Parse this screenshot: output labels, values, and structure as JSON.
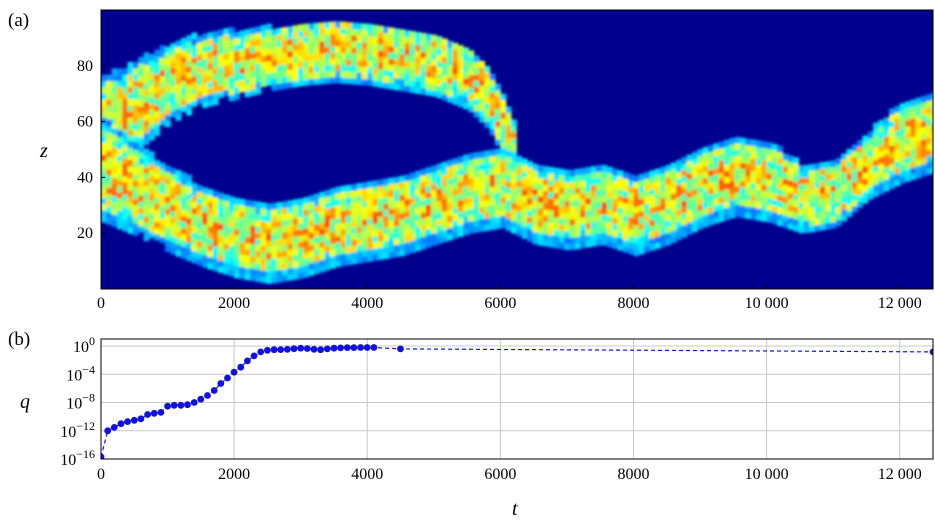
{
  "panel_a": {
    "label": "(a)",
    "ylabel": "z",
    "xlim": [
      0,
      12500
    ],
    "ylim": [
      0,
      100
    ],
    "x_ticks": [
      0,
      2000,
      4000,
      6000,
      8000,
      10000,
      12000
    ],
    "x_tick_labels": [
      "0",
      "2000",
      "4000",
      "6000",
      "8000",
      "10 000",
      "12 000"
    ],
    "y_ticks": [
      20,
      40,
      60,
      80
    ],
    "y_tick_labels": [
      "20",
      "40",
      "60",
      "80"
    ],
    "colormap": "jet",
    "background_color": "#00008f"
  },
  "panel_b": {
    "label": "(b)",
    "xlabel": "t",
    "ylabel": "q",
    "x_tick_labels": [
      "0",
      "2000",
      "4000",
      "6000",
      "8000",
      "10 000",
      "12 000"
    ],
    "y_tick_labels": [
      "10",
      "10",
      "10",
      "10",
      "10"
    ],
    "y_tick_exponents": [
      "0",
      "−4",
      "−8",
      "−12",
      "−16"
    ]
  },
  "chart_data": [
    {
      "type": "heatmap",
      "xlim": [
        0,
        12500
      ],
      "ylim": [
        0,
        100
      ],
      "colormap": "jet",
      "note_values": "turbulent band region; upper band z centers/width per t, lower band z centers/width per t",
      "upper_band": {
        "t": [
          0,
          500,
          1000,
          1500,
          2000,
          2500,
          3000,
          3500,
          4000,
          4500,
          5000,
          5500,
          5800,
          6000,
          6200
        ],
        "center": [
          55,
          65,
          73,
          78,
          80,
          82,
          84,
          85,
          84,
          82,
          80,
          75,
          68,
          58,
          50
        ],
        "halfwidth": [
          18,
          14,
          12,
          11,
          10,
          9,
          9,
          9,
          9,
          9,
          9,
          9,
          9,
          8,
          6
        ]
      },
      "lower_band": {
        "t": [
          0,
          500,
          1000,
          1500,
          2000,
          2500,
          3000,
          3500,
          4000,
          4500,
          5000,
          5500,
          6000,
          6500,
          7000,
          7500,
          8000,
          8500,
          9000,
          9500,
          10000,
          10500,
          11000,
          11500,
          12000,
          12500
        ],
        "center": [
          42,
          35,
          28,
          22,
          18,
          16,
          18,
          22,
          24,
          26,
          30,
          34,
          36,
          30,
          28,
          30,
          26,
          30,
          36,
          40,
          38,
          32,
          34,
          44,
          52,
          56
        ],
        "halfwidth": [
          16,
          14,
          13,
          12,
          12,
          12,
          12,
          12,
          12,
          12,
          12,
          12,
          12,
          12,
          12,
          12,
          12,
          12,
          12,
          12,
          12,
          10,
          10,
          10,
          12,
          12
        ]
      }
    },
    {
      "type": "line",
      "xlabel": "t",
      "ylabel": "q",
      "xlim": [
        0,
        12500
      ],
      "y_scale": "log",
      "ylim": [
        1e-16,
        10
      ],
      "grid": true,
      "color": "#1010e0",
      "line_style": "dashed",
      "x": [
        0,
        100,
        200,
        300,
        400,
        500,
        600,
        700,
        800,
        900,
        1000,
        1100,
        1200,
        1300,
        1400,
        1500,
        1600,
        1700,
        1800,
        1900,
        2000,
        2100,
        2200,
        2300,
        2400,
        2500,
        2600,
        2700,
        2800,
        2900,
        3000,
        3100,
        3200,
        3300,
        3400,
        3500,
        3600,
        3700,
        3800,
        3900,
        4000,
        4100,
        4500,
        12500
      ],
      "y": [
        2e-16,
        1e-12,
        3e-12,
        1e-11,
        2e-11,
        3e-11,
        5e-11,
        2e-10,
        3e-10,
        4e-10,
        3e-09,
        4e-09,
        4e-09,
        5e-09,
        1e-08,
        3e-08,
        1e-07,
        5e-07,
        5e-06,
        3e-05,
        0.0002,
        0.001,
        0.008,
        0.04,
        0.15,
        0.25,
        0.3,
        0.32,
        0.35,
        0.42,
        0.5,
        0.45,
        0.35,
        0.3,
        0.4,
        0.5,
        0.55,
        0.6,
        0.6,
        0.62,
        0.63,
        0.63,
        0.4,
        0.15
      ]
    }
  ]
}
